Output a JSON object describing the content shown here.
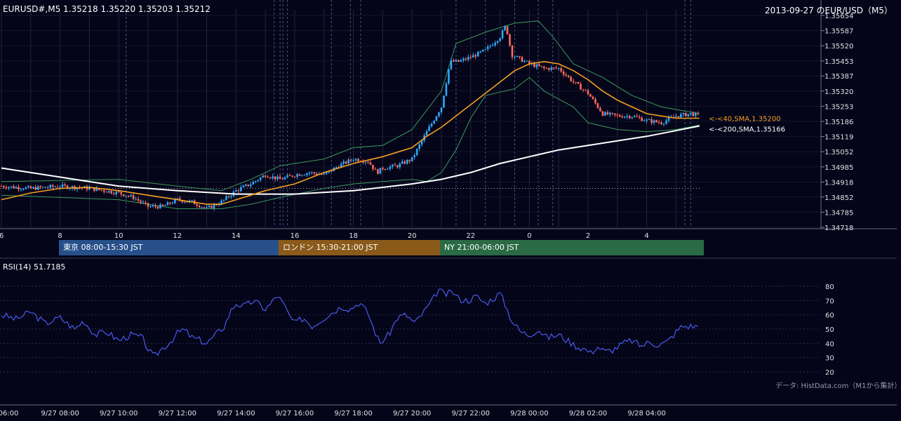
{
  "header": {
    "symbol_info": "EURUSD#,M5 1.35218 1.35220 1.35203 1.35212",
    "date_title": "2013-09-27 のEUR/USD（M5）"
  },
  "sessions": [
    {
      "label": "東京 08:00-15:30 JST",
      "color": "#27508a"
    },
    {
      "label": "ロンドン 15:30-21:00 JST",
      "color": "#8a5a1a"
    },
    {
      "label": "NY 21:00-06:00 JST",
      "color": "#2a6a44"
    }
  ],
  "credit": "データ: HistData.com（M1から集計）",
  "colors": {
    "background": "#05051a",
    "up_candle": "#2fa8ff",
    "down_candle": "#ff6a5a",
    "sma40": "#f4a020",
    "sma200": "#ffffff",
    "bollinger": "#3a9a5a",
    "rsi": "#5060ff"
  },
  "chart_data": [
    {
      "type": "candlestick",
      "title": "EURUSD#,M5",
      "x_tick_labels": [
        "6",
        "8",
        "10",
        "12",
        "14",
        "16",
        "18",
        "20",
        "22",
        "0",
        "2",
        "4"
      ],
      "y_tick_labels": [
        "1.35654",
        "1.35587",
        "1.35520",
        "1.35453",
        "1.35387",
        "1.35320",
        "1.35253",
        "1.35186",
        "1.35119",
        "1.35052",
        "1.34985",
        "1.34918",
        "1.34852",
        "1.34785",
        "1.34718"
      ],
      "ylim": [
        1.34718,
        1.35654
      ],
      "time_range_hours": [
        6.0,
        5.8
      ],
      "dotted_reference_level": 1.3489,
      "overlay_labels": {
        "sma40": "<-<40,SMA,1.35200",
        "sma200": "<-<200,SMA,1.35166"
      },
      "sma40_points": [
        [
          6.0,
          1.3484
        ],
        [
          7.0,
          1.3487
        ],
        [
          8.0,
          1.3489
        ],
        [
          9.0,
          1.34895
        ],
        [
          10.0,
          1.3488
        ],
        [
          11.0,
          1.3486
        ],
        [
          12.0,
          1.3484
        ],
        [
          13.0,
          1.3482
        ],
        [
          13.5,
          1.3482
        ],
        [
          14.0,
          1.3484
        ],
        [
          14.5,
          1.3486
        ],
        [
          15.0,
          1.3488
        ],
        [
          16.0,
          1.3491
        ],
        [
          17.0,
          1.3496
        ],
        [
          18.0,
          1.35
        ],
        [
          19.0,
          1.3503
        ],
        [
          20.0,
          1.3507
        ],
        [
          20.5,
          1.3512
        ],
        [
          21.0,
          1.3516
        ],
        [
          22.0,
          1.3526
        ],
        [
          23.0,
          1.3536
        ],
        [
          23.5,
          1.3541
        ],
        [
          24.0,
          1.3544
        ],
        [
          24.5,
          1.3545
        ],
        [
          25.0,
          1.3544
        ],
        [
          25.5,
          1.3541
        ],
        [
          26.0,
          1.3537
        ],
        [
          26.5,
          1.3532
        ],
        [
          27.0,
          1.3528
        ],
        [
          27.5,
          1.3525
        ],
        [
          28.0,
          1.3522
        ],
        [
          28.5,
          1.3521
        ],
        [
          29.0,
          1.352
        ],
        [
          29.8,
          1.352
        ]
      ],
      "sma200_points": [
        [
          6.0,
          1.3498
        ],
        [
          8.0,
          1.3494
        ],
        [
          10.0,
          1.349
        ],
        [
          12.0,
          1.3488
        ],
        [
          14.0,
          1.34865
        ],
        [
          16.0,
          1.34865
        ],
        [
          18.0,
          1.3488
        ],
        [
          20.0,
          1.3491
        ],
        [
          21.0,
          1.3493
        ],
        [
          22.0,
          1.3496
        ],
        [
          23.0,
          1.35
        ],
        [
          24.0,
          1.3503
        ],
        [
          25.0,
          1.3506
        ],
        [
          26.0,
          1.3508
        ],
        [
          27.0,
          1.351
        ],
        [
          28.0,
          1.3512
        ],
        [
          29.0,
          1.35145
        ],
        [
          29.8,
          1.35166
        ]
      ],
      "bollinger_upper": [
        [
          6.0,
          1.3492
        ],
        [
          10.0,
          1.3493
        ],
        [
          12.0,
          1.349
        ],
        [
          13.5,
          1.3488
        ],
        [
          14.5,
          1.3493
        ],
        [
          15.5,
          1.3499
        ],
        [
          17.0,
          1.3502
        ],
        [
          18.0,
          1.3507
        ],
        [
          19.0,
          1.3508
        ],
        [
          20.0,
          1.3515
        ],
        [
          21.0,
          1.3532
        ],
        [
          21.5,
          1.3553
        ],
        [
          22.5,
          1.3558
        ],
        [
          23.5,
          1.3562
        ],
        [
          24.3,
          1.3563
        ],
        [
          24.8,
          1.3556
        ],
        [
          25.5,
          1.3544
        ],
        [
          26.5,
          1.3538
        ],
        [
          27.5,
          1.353
        ],
        [
          28.5,
          1.3525
        ],
        [
          29.8,
          1.3522
        ]
      ],
      "bollinger_lower": [
        [
          6.0,
          1.3486
        ],
        [
          10.0,
          1.3484
        ],
        [
          12.0,
          1.348
        ],
        [
          13.5,
          1.348
        ],
        [
          14.5,
          1.3482
        ],
        [
          15.5,
          1.3485
        ],
        [
          17.0,
          1.3489
        ],
        [
          18.0,
          1.3491
        ],
        [
          19.0,
          1.3492
        ],
        [
          20.0,
          1.3493
        ],
        [
          20.5,
          1.3492
        ],
        [
          21.0,
          1.3496
        ],
        [
          21.5,
          1.3506
        ],
        [
          22.0,
          1.352
        ],
        [
          22.5,
          1.353
        ],
        [
          23.5,
          1.3533
        ],
        [
          24.0,
          1.3538
        ],
        [
          24.5,
          1.3532
        ],
        [
          25.5,
          1.3525
        ],
        [
          26.0,
          1.3518
        ],
        [
          27.0,
          1.3515
        ],
        [
          28.0,
          1.3514
        ],
        [
          29.0,
          1.3515
        ],
        [
          29.8,
          1.3517
        ]
      ],
      "price_path": [
        [
          6.0,
          1.349
        ],
        [
          7.0,
          1.3489
        ],
        [
          8.0,
          1.349
        ],
        [
          9.0,
          1.3489
        ],
        [
          10.0,
          1.3487
        ],
        [
          10.5,
          1.3485
        ],
        [
          11.0,
          1.3481
        ],
        [
          11.5,
          1.3481
        ],
        [
          12.0,
          1.3484
        ],
        [
          12.5,
          1.3483
        ],
        [
          13.0,
          1.348
        ],
        [
          13.5,
          1.3483
        ],
        [
          14.0,
          1.3488
        ],
        [
          14.5,
          1.3491
        ],
        [
          15.0,
          1.3495
        ],
        [
          15.5,
          1.3493
        ],
        [
          16.0,
          1.3495
        ],
        [
          16.5,
          1.3496
        ],
        [
          17.0,
          1.3495
        ],
        [
          17.5,
          1.3499
        ],
        [
          18.0,
          1.3502
        ],
        [
          18.5,
          1.3501
        ],
        [
          18.8,
          1.3496
        ],
        [
          19.0,
          1.3498
        ],
        [
          19.5,
          1.3499
        ],
        [
          20.0,
          1.3502
        ],
        [
          20.5,
          1.3514
        ],
        [
          21.0,
          1.3525
        ],
        [
          21.3,
          1.3545
        ],
        [
          21.6,
          1.3545
        ],
        [
          22.0,
          1.3547
        ],
        [
          22.5,
          1.355
        ],
        [
          23.0,
          1.3556
        ],
        [
          23.2,
          1.3561
        ],
        [
          23.4,
          1.3548
        ],
        [
          24.0,
          1.3544
        ],
        [
          24.5,
          1.3542
        ],
        [
          25.0,
          1.3542
        ],
        [
          25.5,
          1.3536
        ],
        [
          26.0,
          1.3531
        ],
        [
          26.5,
          1.3522
        ],
        [
          27.0,
          1.3521
        ],
        [
          27.5,
          1.3521
        ],
        [
          28.0,
          1.3519
        ],
        [
          28.5,
          1.3518
        ],
        [
          29.0,
          1.3521
        ],
        [
          29.5,
          1.3522
        ],
        [
          29.8,
          1.35212
        ]
      ]
    },
    {
      "type": "line",
      "title": "RSI(14) 51.7185",
      "y_tick_labels": [
        "80",
        "70",
        "60",
        "50",
        "40",
        "30",
        "20"
      ],
      "ylim": [
        20,
        80
      ],
      "x_tick_labels": [
        "06:00",
        "9/27 08:00",
        "9/27 10:00",
        "9/27 12:00",
        "9/27 14:00",
        "9/27 16:00",
        "9/27 18:00",
        "9/27 20:00",
        "9/27 22:00",
        "9/28 00:00",
        "9/28 02:00",
        "9/28 04:00"
      ],
      "rsi_points": [
        [
          6.0,
          60
        ],
        [
          6.5,
          57
        ],
        [
          7.0,
          62
        ],
        [
          7.5,
          54
        ],
        [
          8.0,
          58
        ],
        [
          8.5,
          50
        ],
        [
          8.8,
          56
        ],
        [
          9.2,
          46
        ],
        [
          9.6,
          48
        ],
        [
          10.0,
          42
        ],
        [
          10.4,
          46
        ],
        [
          10.8,
          44
        ],
        [
          11.0,
          36
        ],
        [
          11.2,
          30
        ],
        [
          11.4,
          35
        ],
        [
          11.7,
          40
        ],
        [
          12.0,
          47
        ],
        [
          12.2,
          50
        ],
        [
          12.5,
          44
        ],
        [
          12.8,
          42
        ],
        [
          13.0,
          40
        ],
        [
          13.3,
          46
        ],
        [
          13.6,
          52
        ],
        [
          13.8,
          62
        ],
        [
          14.0,
          68
        ],
        [
          14.3,
          66
        ],
        [
          14.6,
          70
        ],
        [
          15.0,
          64
        ],
        [
          15.2,
          68
        ],
        [
          15.4,
          74
        ],
        [
          15.6,
          68
        ],
        [
          15.8,
          60
        ],
        [
          16.0,
          54
        ],
        [
          16.3,
          58
        ],
        [
          16.6,
          52
        ],
        [
          17.0,
          58
        ],
        [
          17.3,
          62
        ],
        [
          17.6,
          66
        ],
        [
          17.9,
          64
        ],
        [
          18.2,
          69
        ],
        [
          18.5,
          61
        ],
        [
          18.7,
          50
        ],
        [
          18.9,
          40
        ],
        [
          19.2,
          46
        ],
        [
          19.5,
          58
        ],
        [
          19.8,
          60
        ],
        [
          20.1,
          54
        ],
        [
          20.4,
          62
        ],
        [
          20.7,
          70
        ],
        [
          20.9,
          78
        ],
        [
          21.1,
          74
        ],
        [
          21.4,
          76
        ],
        [
          21.6,
          71
        ],
        [
          21.9,
          70
        ],
        [
          22.2,
          73
        ],
        [
          22.5,
          68
        ],
        [
          22.8,
          72
        ],
        [
          23.0,
          75
        ],
        [
          23.2,
          66
        ],
        [
          23.4,
          56
        ],
        [
          23.7,
          48
        ],
        [
          24.0,
          46
        ],
        [
          24.3,
          50
        ],
        [
          24.6,
          44
        ],
        [
          25.0,
          46
        ],
        [
          25.3,
          42
        ],
        [
          25.6,
          38
        ],
        [
          25.9,
          36
        ],
        [
          26.1,
          33
        ],
        [
          26.3,
          38
        ],
        [
          26.6,
          34
        ],
        [
          26.9,
          36
        ],
        [
          27.2,
          40
        ],
        [
          27.5,
          42
        ],
        [
          27.8,
          38
        ],
        [
          28.1,
          41
        ],
        [
          28.4,
          39
        ],
        [
          28.7,
          41
        ],
        [
          29.0,
          48
        ],
        [
          29.2,
          52
        ],
        [
          29.5,
          52
        ],
        [
          29.8,
          52
        ]
      ]
    }
  ]
}
